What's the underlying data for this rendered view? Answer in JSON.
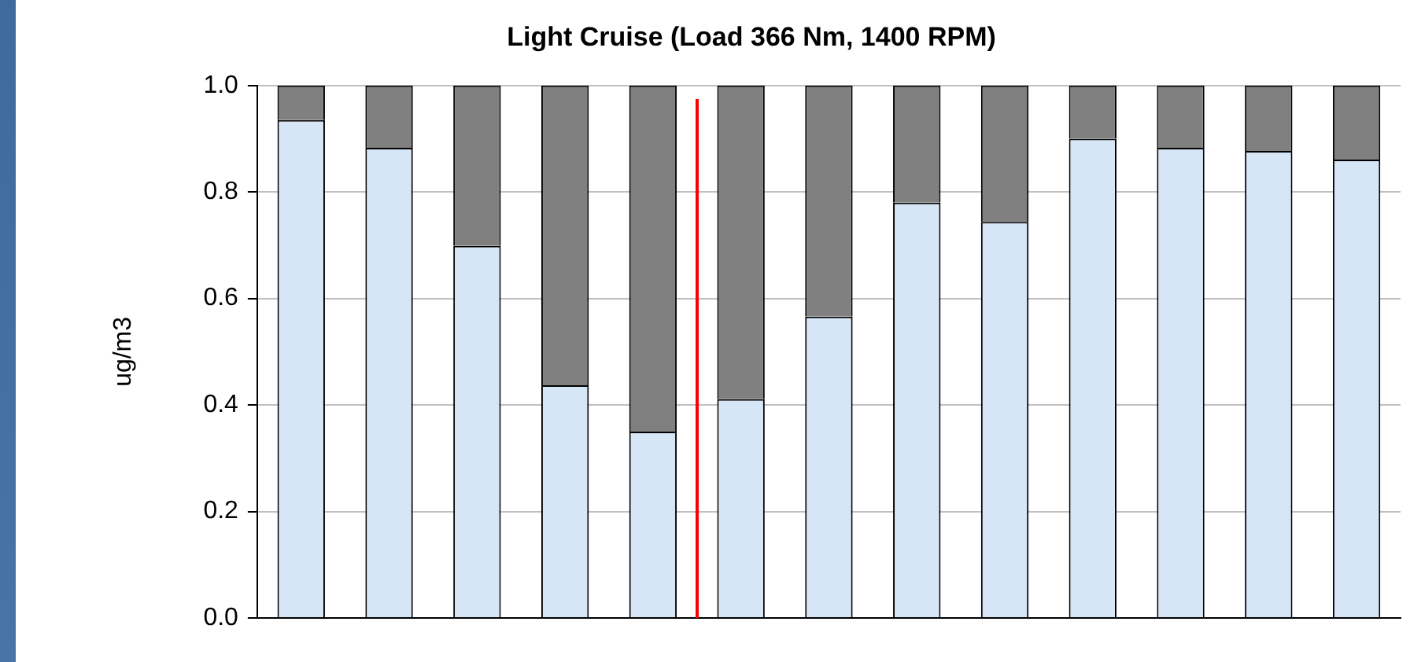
{
  "chart_data": {
    "type": "bar",
    "title": "Light Cruise (Load 366 Nm, 1400 RPM)",
    "ylabel": "ug/m3",
    "stacked": true,
    "categories": [
      null,
      null,
      null,
      null,
      null,
      null,
      null,
      null,
      null,
      null,
      null,
      null,
      null
    ],
    "series": [
      {
        "color": "#d6e6f7",
        "values": [
          0.935,
          0.883,
          0.699,
          0.437,
          0.35,
          0.411,
          0.566,
          0.78,
          0.744,
          0.9,
          0.883,
          0.877,
          0.861
        ]
      },
      {
        "color": "#808080",
        "values": [
          0.065,
          0.117,
          0.301,
          0.563,
          0.65,
          0.589,
          0.434,
          0.22,
          0.256,
          0.1,
          0.117,
          0.123,
          0.139
        ]
      }
    ],
    "ylim": [
      0,
      1
    ],
    "yticks": [
      {
        "value": 0,
        "label": "0.0"
      },
      {
        "value": 0.2,
        "label": "0.2"
      },
      {
        "value": 0.4,
        "label": "0.4"
      },
      {
        "value": 0.6,
        "label": "0.6"
      },
      {
        "value": 0.8,
        "label": "0.8"
      },
      {
        "value": 1,
        "label": "1.0"
      }
    ],
    "grid": "y",
    "tick_labels": "y",
    "legend": false
  }
}
